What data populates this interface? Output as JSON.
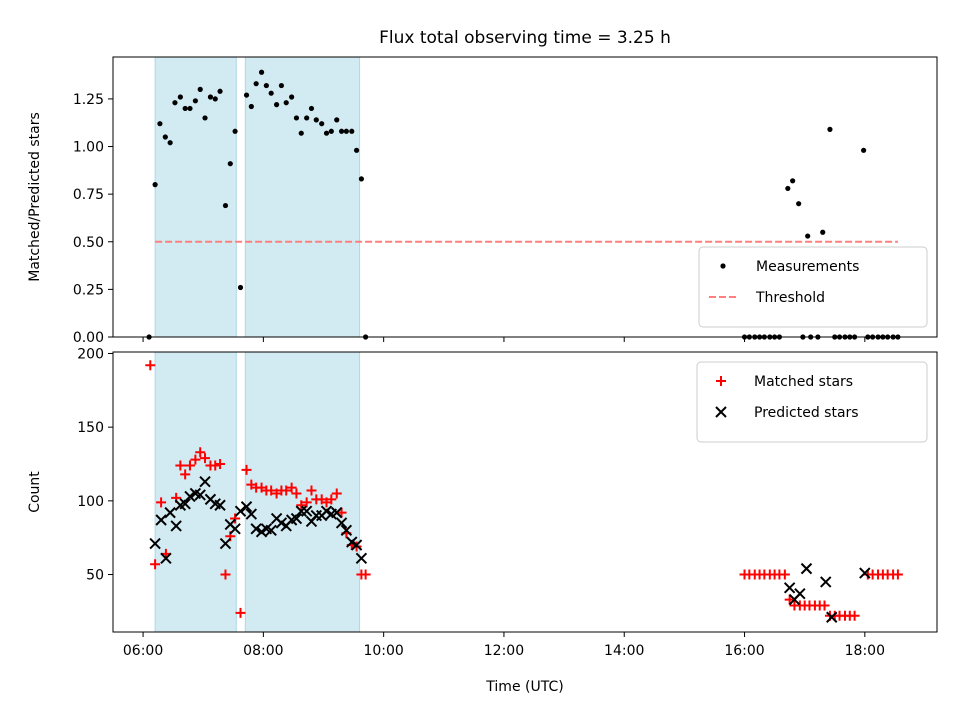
{
  "title": "Flux total observing time = 3.25 h",
  "shade_color": "#add8e6",
  "chart_data": [
    {
      "type": "scatter",
      "panel": "top",
      "ylabel": "Matched/Predicted stars",
      "xlim": [
        5.5,
        19.2
      ],
      "ylim": [
        0,
        1.47
      ],
      "yticks": [
        0,
        0.25,
        0.5,
        0.75,
        1.0,
        1.25
      ],
      "ytick_labels": [
        "0.00",
        "0.25",
        "0.50",
        "0.75",
        "1.00",
        "1.25"
      ],
      "shaded_intervals": [
        [
          6.2,
          7.55
        ],
        [
          7.7,
          9.6
        ]
      ],
      "legend_position": "lower-right",
      "series": [
        {
          "name": "Measurements",
          "marker": "dot",
          "color": "#000000",
          "points": [
            [
              6.1,
              0.0
            ],
            [
              6.2,
              0.8
            ],
            [
              6.28,
              1.12
            ],
            [
              6.37,
              1.05
            ],
            [
              6.45,
              1.02
            ],
            [
              6.53,
              1.23
            ],
            [
              6.62,
              1.26
            ],
            [
              6.7,
              1.2
            ],
            [
              6.78,
              1.2
            ],
            [
              6.87,
              1.24
            ],
            [
              6.95,
              1.3
            ],
            [
              7.03,
              1.15
            ],
            [
              7.12,
              1.26
            ],
            [
              7.2,
              1.25
            ],
            [
              7.28,
              1.29
            ],
            [
              7.37,
              0.69
            ],
            [
              7.45,
              0.91
            ],
            [
              7.53,
              1.08
            ],
            [
              7.62,
              0.26
            ],
            [
              7.72,
              1.27
            ],
            [
              7.8,
              1.21
            ],
            [
              7.88,
              1.33
            ],
            [
              7.97,
              1.39
            ],
            [
              8.05,
              1.32
            ],
            [
              8.13,
              1.28
            ],
            [
              8.22,
              1.22
            ],
            [
              8.3,
              1.32
            ],
            [
              8.38,
              1.23
            ],
            [
              8.47,
              1.26
            ],
            [
              8.55,
              1.15
            ],
            [
              8.63,
              1.07
            ],
            [
              8.72,
              1.15
            ],
            [
              8.8,
              1.2
            ],
            [
              8.88,
              1.14
            ],
            [
              8.97,
              1.12
            ],
            [
              9.05,
              1.07
            ],
            [
              9.13,
              1.08
            ],
            [
              9.22,
              1.14
            ],
            [
              9.3,
              1.08
            ],
            [
              9.38,
              1.08
            ],
            [
              9.47,
              1.08
            ],
            [
              9.55,
              0.98
            ],
            [
              9.63,
              0.83
            ],
            [
              9.7,
              0.0
            ],
            [
              16.0,
              0.0
            ],
            [
              16.08,
              0.0
            ],
            [
              16.17,
              0.0
            ],
            [
              16.25,
              0.0
            ],
            [
              16.33,
              0.0
            ],
            [
              16.42,
              0.0
            ],
            [
              16.5,
              0.0
            ],
            [
              16.58,
              0.0
            ],
            [
              16.72,
              0.78
            ],
            [
              16.8,
              0.82
            ],
            [
              16.9,
              0.7
            ],
            [
              17.05,
              0.53
            ],
            [
              17.3,
              0.55
            ],
            [
              17.42,
              1.09
            ],
            [
              17.98,
              0.98
            ],
            [
              16.97,
              0.0
            ],
            [
              17.1,
              0.0
            ],
            [
              17.22,
              0.0
            ],
            [
              17.5,
              0.0
            ],
            [
              17.58,
              0.0
            ],
            [
              17.67,
              0.0
            ],
            [
              17.75,
              0.0
            ],
            [
              17.83,
              0.0
            ],
            [
              18.05,
              0.0
            ],
            [
              18.13,
              0.0
            ],
            [
              18.22,
              0.0
            ],
            [
              18.3,
              0.0
            ],
            [
              18.38,
              0.0
            ],
            [
              18.47,
              0.0
            ],
            [
              18.55,
              0.0
            ]
          ]
        },
        {
          "name": "Threshold",
          "kind": "line",
          "style": "dashed",
          "color": "#ff7f7f",
          "x": [
            6.2,
            18.55
          ],
          "y": [
            0.5,
            0.5
          ]
        }
      ]
    },
    {
      "type": "scatter",
      "panel": "bottom",
      "xlabel": "Time (UTC)",
      "ylabel": "Count",
      "xlim": [
        5.5,
        19.2
      ],
      "ylim": [
        11,
        201
      ],
      "yticks": [
        50,
        100,
        150,
        200
      ],
      "ytick_labels": [
        "50",
        "100",
        "150",
        "200"
      ],
      "xticks": [
        6,
        8,
        10,
        12,
        14,
        16,
        18
      ],
      "xtick_labels": [
        "06:00",
        "08:00",
        "10:00",
        "12:00",
        "14:00",
        "16:00",
        "18:00"
      ],
      "shaded_intervals": [
        [
          6.2,
          7.55
        ],
        [
          7.7,
          9.6
        ]
      ],
      "legend_position": "upper-right",
      "series": [
        {
          "name": "Matched stars",
          "marker": "plus",
          "color": "#ff0000",
          "points": [
            [
              6.12,
              192
            ],
            [
              6.2,
              57
            ],
            [
              6.3,
              99
            ],
            [
              6.38,
              64
            ],
            [
              6.55,
              102
            ],
            [
              6.62,
              124
            ],
            [
              6.7,
              118
            ],
            [
              6.78,
              124
            ],
            [
              6.87,
              128
            ],
            [
              6.95,
              133
            ],
            [
              7.03,
              129
            ],
            [
              7.12,
              124
            ],
            [
              7.2,
              124
            ],
            [
              7.28,
              125
            ],
            [
              7.37,
              50
            ],
            [
              7.45,
              76
            ],
            [
              7.53,
              88
            ],
            [
              7.62,
              24
            ],
            [
              7.72,
              121
            ],
            [
              7.8,
              111
            ],
            [
              7.88,
              109
            ],
            [
              7.97,
              109
            ],
            [
              8.05,
              107
            ],
            [
              8.13,
              107
            ],
            [
              8.22,
              105
            ],
            [
              8.3,
              107
            ],
            [
              8.38,
              107
            ],
            [
              8.47,
              109
            ],
            [
              8.55,
              105
            ],
            [
              8.63,
              97
            ],
            [
              8.72,
              99
            ],
            [
              8.8,
              107
            ],
            [
              8.88,
              101
            ],
            [
              8.97,
              101
            ],
            [
              9.05,
              99
            ],
            [
              9.13,
              101
            ],
            [
              9.22,
              105
            ],
            [
              9.3,
              92
            ],
            [
              9.38,
              78
            ],
            [
              9.47,
              70
            ],
            [
              9.55,
              69
            ],
            [
              9.63,
              50
            ],
            [
              9.7,
              50
            ],
            [
              16.0,
              50
            ],
            [
              16.08,
              50
            ],
            [
              16.17,
              50
            ],
            [
              16.25,
              50
            ],
            [
              16.33,
              50
            ],
            [
              16.42,
              50
            ],
            [
              16.5,
              50
            ],
            [
              16.58,
              50
            ],
            [
              16.67,
              50
            ],
            [
              16.75,
              33
            ],
            [
              16.83,
              29
            ],
            [
              16.92,
              29
            ],
            [
              17.0,
              29
            ],
            [
              17.08,
              29
            ],
            [
              17.17,
              29
            ],
            [
              17.25,
              29
            ],
            [
              17.33,
              29
            ],
            [
              17.42,
              22
            ],
            [
              17.5,
              22
            ],
            [
              17.58,
              22
            ],
            [
              17.67,
              22
            ],
            [
              17.75,
              22
            ],
            [
              17.83,
              22
            ],
            [
              18.05,
              50
            ],
            [
              18.13,
              50
            ],
            [
              18.22,
              50
            ],
            [
              18.3,
              50
            ],
            [
              18.38,
              50
            ],
            [
              18.47,
              50
            ],
            [
              18.55,
              50
            ]
          ]
        },
        {
          "name": "Predicted stars",
          "marker": "x",
          "color": "#000000",
          "points": [
            [
              6.2,
              71
            ],
            [
              6.3,
              87
            ],
            [
              6.38,
              61
            ],
            [
              6.45,
              92
            ],
            [
              6.55,
              83
            ],
            [
              6.62,
              97
            ],
            [
              6.7,
              98
            ],
            [
              6.78,
              103
            ],
            [
              6.87,
              105
            ],
            [
              6.95,
              104
            ],
            [
              7.03,
              113
            ],
            [
              7.12,
              101
            ],
            [
              7.2,
              98
            ],
            [
              7.28,
              97
            ],
            [
              7.37,
              71
            ],
            [
              7.45,
              84
            ],
            [
              7.53,
              81
            ],
            [
              7.62,
              93
            ],
            [
              7.72,
              96
            ],
            [
              7.8,
              91
            ],
            [
              7.88,
              81
            ],
            [
              7.97,
              79
            ],
            [
              8.05,
              81
            ],
            [
              8.13,
              80
            ],
            [
              8.22,
              88
            ],
            [
              8.3,
              85
            ],
            [
              8.38,
              83
            ],
            [
              8.47,
              87
            ],
            [
              8.55,
              88
            ],
            [
              8.63,
              93
            ],
            [
              8.72,
              93
            ],
            [
              8.8,
              86
            ],
            [
              8.88,
              90
            ],
            [
              8.97,
              90
            ],
            [
              9.05,
              93
            ],
            [
              9.13,
              91
            ],
            [
              9.22,
              92
            ],
            [
              9.3,
              85
            ],
            [
              9.38,
              80
            ],
            [
              9.47,
              72
            ],
            [
              9.55,
              70
            ],
            [
              9.63,
              61
            ],
            [
              16.75,
              41
            ],
            [
              16.83,
              33
            ],
            [
              16.92,
              37
            ],
            [
              17.03,
              54
            ],
            [
              17.35,
              45
            ],
            [
              17.45,
              21
            ],
            [
              18.0,
              51
            ]
          ]
        }
      ]
    }
  ]
}
